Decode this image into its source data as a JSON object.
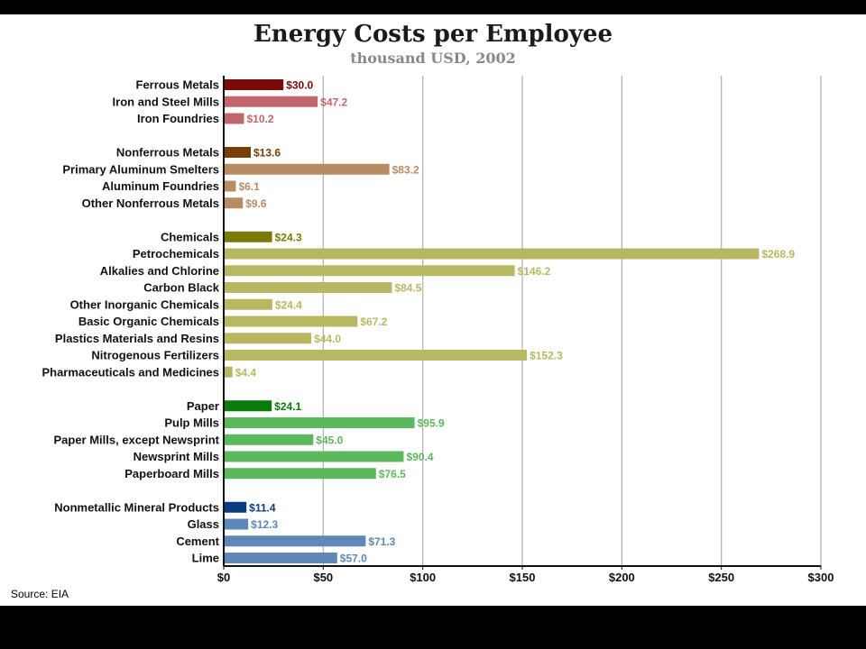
{
  "chart_data": {
    "type": "bar",
    "orientation": "horizontal",
    "title": "Energy Costs per Employee",
    "subtitle": "thousand USD, 2002",
    "source": "Source: EIA",
    "xlim": [
      0,
      300
    ],
    "x_ticks": [
      "$0",
      "$50",
      "$100",
      "$150",
      "$200",
      "$250",
      "$300"
    ],
    "x_tick_values": [
      0,
      50,
      100,
      150,
      200,
      250,
      300
    ],
    "grid": true,
    "groups": [
      {
        "header_color": "#7a0a0a",
        "color": "#c0666c",
        "items": [
          {
            "label": "Ferrous Metals",
            "value": 30.0,
            "value_label": "$30.0",
            "header": true
          },
          {
            "label": "Iron and Steel Mills",
            "value": 47.2,
            "value_label": "$47.2"
          },
          {
            "label": "Iron Foundries",
            "value": 10.2,
            "value_label": "$10.2"
          }
        ]
      },
      {
        "header_color": "#7a3e05",
        "color": "#b88c62",
        "items": [
          {
            "label": "Nonferrous Metals",
            "value": 13.6,
            "value_label": "$13.6",
            "header": true
          },
          {
            "label": "Primary Aluminum Smelters",
            "value": 83.2,
            "value_label": "$83.2"
          },
          {
            "label": "Aluminum Foundries",
            "value": 6.1,
            "value_label": "$6.1"
          },
          {
            "label": "Other Nonferrous Metals",
            "value": 9.6,
            "value_label": "$9.6"
          }
        ]
      },
      {
        "header_color": "#7a7a08",
        "color": "#b8b862",
        "items": [
          {
            "label": "Chemicals",
            "value": 24.3,
            "value_label": "$24.3",
            "header": true
          },
          {
            "label": "Petrochemicals",
            "value": 268.9,
            "value_label": "$268.9"
          },
          {
            "label": "Alkalies and Chlorine",
            "value": 146.2,
            "value_label": "$146.2"
          },
          {
            "label": "Carbon Black",
            "value": 84.5,
            "value_label": "$84.5"
          },
          {
            "label": "Other Inorganic Chemicals",
            "value": 24.4,
            "value_label": "$24.4"
          },
          {
            "label": "Basic Organic Chemicals",
            "value": 67.2,
            "value_label": "$67.2"
          },
          {
            "label": "Plastics Materials and Resins",
            "value": 44.0,
            "value_label": "$44.0"
          },
          {
            "label": "Nitrogenous Fertilizers",
            "value": 152.3,
            "value_label": "$152.3"
          },
          {
            "label": "Pharmaceuticals and Medicines",
            "value": 4.4,
            "value_label": "$4.4"
          }
        ]
      },
      {
        "header_color": "#0a7a0a",
        "color": "#5cb85c",
        "items": [
          {
            "label": "Paper",
            "value": 24.1,
            "value_label": "$24.1",
            "header": true
          },
          {
            "label": "Pulp Mills",
            "value": 95.9,
            "value_label": "$95.9"
          },
          {
            "label": "Paper Mills, except Newsprint",
            "value": 45.0,
            "value_label": "$45.0"
          },
          {
            "label": "Newsprint Mills",
            "value": 90.4,
            "value_label": "$90.4"
          },
          {
            "label": "Paperboard Mills",
            "value": 76.5,
            "value_label": "$76.5"
          }
        ]
      },
      {
        "header_color": "#0a3a80",
        "color": "#5d88b8",
        "items": [
          {
            "label": "Nonmetallic Mineral Products",
            "value": 11.4,
            "value_label": "$11.4",
            "header": true
          },
          {
            "label": "Glass",
            "value": 12.3,
            "value_label": "$12.3"
          },
          {
            "label": "Cement",
            "value": 71.3,
            "value_label": "$71.3"
          },
          {
            "label": "Lime",
            "value": 57.0,
            "value_label": "$57.0"
          }
        ]
      }
    ]
  }
}
